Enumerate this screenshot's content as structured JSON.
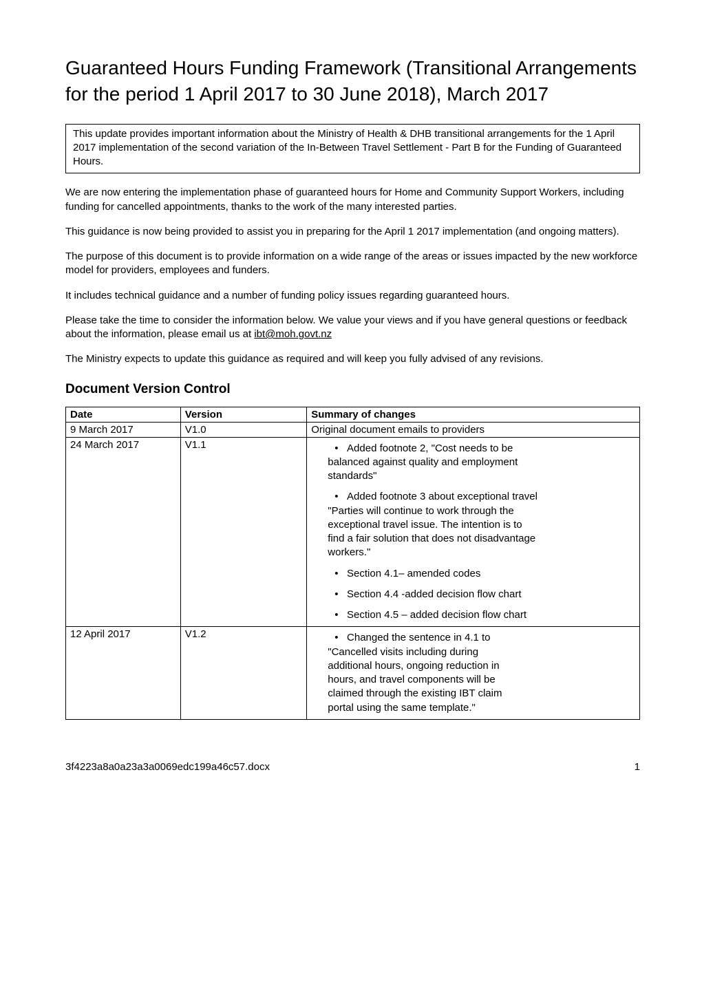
{
  "title": "Guaranteed Hours Funding Framework (Transitional Arrangements for the period 1 April 2017 to 30 June 2018), March 2017",
  "info_box": "This update provides important information about the Ministry of Health & DHB transitional arrangements for the 1 April 2017 implementation of the second variation of the In-Between Travel Settlement - Part B for the Funding of Guaranteed Hours.",
  "paragraphs": {
    "p1": "We are now entering the implementation phase of guaranteed hours for Home and Community Support Workers, including funding for cancelled appointments, thanks to the work of the many interested parties.",
    "p2": "This guidance is now being provided to assist you in preparing for the April 1 2017 implementation (and ongoing matters).",
    "p3": "The purpose of this document is to provide information on a wide range of the areas or issues impacted by the new workforce model for providers, employees and funders.",
    "p4": "It includes technical guidance and a number of funding policy issues regarding guaranteed hours.",
    "p5_before": "Please take the time to consider the information below. We value your views and if you have general questions or feedback about the information, please email us at ",
    "p5_link": "ibt@moh.govt.nz",
    "p6": "The Ministry expects to update this guidance as required and will keep you fully advised of any revisions."
  },
  "section_heading": "Document Version Control",
  "table": {
    "headers": {
      "date": "Date",
      "version": "Version",
      "summary": "Summary of changes"
    },
    "rows": [
      {
        "date": "9 March 2017",
        "version": "V1.0",
        "summary_plain": "Original document emails to providers"
      },
      {
        "date": "24 March 2017",
        "version": "V1.1",
        "bullets": [
          {
            "lead": "Added footnote 2, \"Cost needs to be",
            "cont": [
              "balanced against quality and employment",
              "standards\""
            ]
          },
          {
            "lead": "Added footnote 3 about exceptional travel",
            "cont": [
              "\"Parties will continue to work through the",
              "exceptional travel issue.  The intention is to",
              "find a fair solution that does not disadvantage",
              "workers.\""
            ]
          },
          {
            "lead": "Section 4.1– amended codes",
            "cont": []
          },
          {
            "lead": "Section 4.4 -added decision flow chart",
            "cont": []
          },
          {
            "lead": "Section 4.5 – added decision flow chart",
            "cont": []
          }
        ]
      },
      {
        "date": "12 April 2017",
        "version": "V1.2",
        "bullets": [
          {
            "lead": "Changed the sentence in 4.1 to",
            "cont": [
              "\"Cancelled visits including during",
              "additional hours, ongoing reduction in",
              "hours, and travel components will be",
              "claimed through the existing IBT claim",
              "portal using the same template.\""
            ]
          }
        ]
      }
    ]
  },
  "footer": {
    "filename": "3f4223a8a0a23a3a0069edc199a46c57.docx",
    "page": "1"
  }
}
